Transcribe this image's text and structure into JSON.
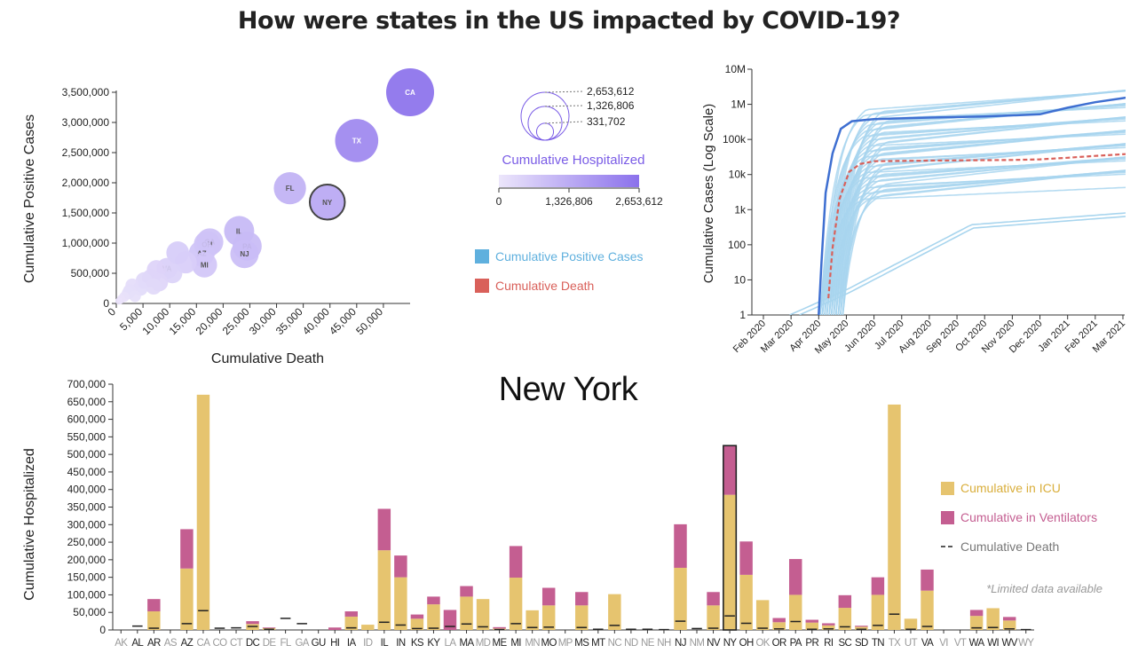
{
  "page": {
    "title": "How were states in the US impacted by COVID-19?",
    "selected_state": "New York"
  },
  "colors": {
    "scatter_low": "#ece6fb",
    "scatter_high": "#8b71ec",
    "selected_stroke": "#444444",
    "series_blue": "#5fb0de",
    "series_red": "#d9605a",
    "line_faint": "#a8d5ee",
    "line_highlight": "#3e6fd1",
    "line_death": "#d9605a",
    "icu": "#e6c46f",
    "ventilator": "#c45e91",
    "death_mark": "#222222",
    "title_purple": "#7a5ce6",
    "label_gray": "#8a8a8a"
  },
  "chart_data": [
    {
      "id": "scatter",
      "type": "scatter",
      "xlabel": "Cumulative Death",
      "ylabel": "Cumulative Positive Cases",
      "xlim": [
        0,
        55000
      ],
      "ylim": [
        0,
        3500000
      ],
      "xticks": [
        "0",
        "5,000",
        "10,000",
        "15,000",
        "20,000",
        "25,000",
        "30,000",
        "35,000",
        "40,000",
        "45,000",
        "50,000"
      ],
      "xtick_values": [
        0,
        5000,
        10000,
        15000,
        20000,
        25000,
        30000,
        35000,
        40000,
        45000,
        50000
      ],
      "yticks": [
        "0",
        "500,000",
        "1,000,000",
        "1,500,000",
        "2,000,000",
        "2,500,000",
        "3,000,000",
        "3,500,000"
      ],
      "ytick_values": [
        0,
        500000,
        1000000,
        1500000,
        2000000,
        2500000,
        3000000,
        3500000
      ],
      "points": [
        {
          "label": "CA",
          "x": 55000,
          "y": 3500000,
          "h": 2653612
        },
        {
          "label": "TX",
          "x": 45000,
          "y": 2700000,
          "h": 2150000
        },
        {
          "label": "FL",
          "x": 32500,
          "y": 1910000,
          "h": 1200000
        },
        {
          "label": "NY",
          "x": 39500,
          "y": 1680000,
          "h": 1420000,
          "selected": true
        },
        {
          "label": "IL",
          "x": 23000,
          "y": 1200000,
          "h": 1050000
        },
        {
          "label": "PA",
          "x": 24500,
          "y": 950000,
          "h": 980000
        },
        {
          "label": "NJ",
          "x": 24000,
          "y": 820000,
          "h": 930000
        },
        {
          "label": "GA",
          "x": 17500,
          "y": 1020000,
          "h": 850000
        },
        {
          "label": "OH",
          "x": 17000,
          "y": 980000,
          "h": 820000
        },
        {
          "label": "AZ",
          "x": 16000,
          "y": 830000,
          "h": 780000
        },
        {
          "label": "MI",
          "x": 16500,
          "y": 640000,
          "h": 740000
        },
        {
          "label": "VA",
          "x": 9500,
          "y": 580000,
          "h": 520000
        },
        {
          "label": "",
          "x": 11500,
          "y": 840000,
          "h": 600000
        },
        {
          "label": "",
          "x": 13000,
          "y": 680000,
          "h": 560000
        },
        {
          "label": "",
          "x": 10500,
          "y": 500000,
          "h": 460000
        },
        {
          "label": "",
          "x": 7500,
          "y": 560000,
          "h": 420000
        },
        {
          "label": "",
          "x": 6500,
          "y": 420000,
          "h": 380000
        },
        {
          "label": "",
          "x": 8000,
          "y": 350000,
          "h": 380000
        },
        {
          "label": "",
          "x": 5200,
          "y": 380000,
          "h": 320000
        },
        {
          "label": "",
          "x": 7000,
          "y": 280000,
          "h": 300000
        },
        {
          "label": "",
          "x": 4500,
          "y": 250000,
          "h": 260000
        },
        {
          "label": "",
          "x": 3000,
          "y": 300000,
          "h": 220000
        },
        {
          "label": "",
          "x": 2200,
          "y": 170000,
          "h": 180000
        },
        {
          "label": "",
          "x": 3500,
          "y": 120000,
          "h": 160000
        },
        {
          "label": "",
          "x": 1500,
          "y": 110000,
          "h": 120000
        },
        {
          "label": "",
          "x": 900,
          "y": 70000,
          "h": 90000
        },
        {
          "label": "",
          "x": 500,
          "y": 40000,
          "h": 60000
        },
        {
          "label": "",
          "x": 2500,
          "y": 210000,
          "h": 200000
        }
      ]
    },
    {
      "id": "hosp-legend",
      "type": "legend",
      "title": "Cumulative Hospitalized",
      "size_values": [
        "2,653,612",
        "1,326,806",
        "331,702"
      ],
      "size_numbers": [
        2653612,
        1326806,
        331702
      ],
      "gradient_ticks": [
        "0",
        "1,326,806",
        "2,653,612"
      ],
      "series_legend": [
        {
          "name": "Cumulative Positive Cases",
          "color": "#5fb0de"
        },
        {
          "name": "Cumulative Death",
          "color": "#d9605a"
        }
      ]
    },
    {
      "id": "timeline",
      "type": "line",
      "ylabel": "Cumulative Cases (Log Scale)",
      "yscale": "log",
      "ylim": [
        1,
        10000000
      ],
      "yticks": [
        "1",
        "10",
        "100",
        "1k",
        "10k",
        "100k",
        "1M",
        "10M"
      ],
      "xticks": [
        "Feb 2020",
        "Mar 2020",
        "Apr 2020",
        "May 2020",
        "Jun 2020",
        "Jul 2020",
        "Aug 2020",
        "Sep 2020",
        "Oct 2020",
        "Nov 2020",
        "Dec 2020",
        "Jan 2021",
        "Feb 2021",
        "Mar 2021"
      ],
      "highlight_cases": [
        [
          2.0,
          1
        ],
        [
          2.1,
          30
        ],
        [
          2.25,
          3000
        ],
        [
          2.5,
          40000
        ],
        [
          2.8,
          200000
        ],
        [
          3.2,
          330000
        ],
        [
          4,
          380000
        ],
        [
          6,
          420000
        ],
        [
          8,
          450000
        ],
        [
          10,
          520000
        ],
        [
          11,
          800000
        ],
        [
          12,
          1150000
        ],
        [
          13,
          1500000
        ],
        [
          13.4,
          1680000
        ]
      ],
      "highlight_deaths": [
        [
          2.35,
          3
        ],
        [
          2.5,
          80
        ],
        [
          2.75,
          2000
        ],
        [
          3.1,
          12000
        ],
        [
          3.5,
          20000
        ],
        [
          4,
          24000
        ],
        [
          6,
          25000
        ],
        [
          9,
          26000
        ],
        [
          10,
          27000
        ],
        [
          11,
          30000
        ],
        [
          12,
          34000
        ],
        [
          13.4,
          39500
        ]
      ]
    },
    {
      "id": "bars",
      "type": "bar",
      "ylabel": "Cumulative Hospitalized",
      "ylim": [
        0,
        700000
      ],
      "yticks": [
        "0",
        "50,000",
        "100,000",
        "150,000",
        "200,000",
        "250,000",
        "300,000",
        "350,000",
        "400,000",
        "450,000",
        "500,000",
        "550,000",
        "600,000",
        "650,000",
        "700,000"
      ],
      "categories": [
        "AK",
        "AL",
        "AR",
        "AS",
        "AZ",
        "CA",
        "CO",
        "CT",
        "DC",
        "DE",
        "FL",
        "GA",
        "GU",
        "HI",
        "IA",
        "ID",
        "IL",
        "IN",
        "KS",
        "KY",
        "LA",
        "MA",
        "MD",
        "ME",
        "MI",
        "MN",
        "MO",
        "MP",
        "MS",
        "MT",
        "NC",
        "ND",
        "NE",
        "NH",
        "NJ",
        "NM",
        "NV",
        "NY",
        "OH",
        "OK",
        "OR",
        "PA",
        "PR",
        "RI",
        "SC",
        "SD",
        "TN",
        "TX",
        "UT",
        "VA",
        "VI",
        "VT",
        "WA",
        "WI",
        "WV",
        "WY"
      ],
      "limited": [
        "AK",
        "AS",
        "CA",
        "CO",
        "CT",
        "DE",
        "FL",
        "GA",
        "ID",
        "LA",
        "MD",
        "MN",
        "MP",
        "NC",
        "ND",
        "NE",
        "NH",
        "NM",
        "OK",
        "TX",
        "UT",
        "VI",
        "VT",
        "WY"
      ],
      "icu": [
        0,
        0,
        53000,
        0,
        175000,
        670000,
        0,
        0,
        17000,
        5000,
        0,
        0,
        0,
        0,
        38000,
        15000,
        227000,
        150000,
        32000,
        73000,
        0,
        95000,
        88000,
        4000,
        149000,
        56000,
        70000,
        0,
        70000,
        0,
        102000,
        0,
        0,
        0,
        177000,
        0,
        70000,
        385000,
        157000,
        85000,
        22000,
        100000,
        21000,
        13000,
        63000,
        9000,
        100000,
        642000,
        32000,
        112000,
        0,
        0,
        40000,
        62000,
        27000,
        0
      ],
      "vent": [
        0,
        0,
        35000,
        0,
        112000,
        0,
        0,
        0,
        8000,
        2000,
        0,
        0,
        0,
        7000,
        15000,
        0,
        118000,
        62000,
        12000,
        22000,
        57000,
        30000,
        0,
        4000,
        90000,
        0,
        50000,
        0,
        38000,
        0,
        0,
        0,
        0,
        0,
        124000,
        0,
        38000,
        140000,
        95000,
        0,
        12000,
        102000,
        8000,
        6000,
        36000,
        3000,
        50000,
        0,
        0,
        60000,
        0,
        0,
        17000,
        0,
        10000,
        0
      ],
      "deaths": [
        0,
        11000,
        5000,
        0,
        18000,
        55000,
        5000,
        6000,
        10000,
        2000,
        33000,
        18000,
        0,
        0,
        6000,
        0,
        22000,
        14000,
        4000,
        5000,
        10000,
        17000,
        9000,
        1000,
        18000,
        7000,
        8000,
        0,
        7000,
        2000,
        13000,
        2000,
        2000,
        1000,
        25000,
        4000,
        5000,
        40000,
        19000,
        5000,
        3000,
        24000,
        2000,
        3000,
        9000,
        2000,
        13000,
        45000,
        2000,
        10000,
        0,
        0,
        6000,
        7000,
        3000,
        1000
      ],
      "selected": "NY",
      "legend": [
        "Cumulative in ICU",
        "Cumulative in Ventilators",
        "Cumulative Death"
      ],
      "note": "*Limited data available"
    }
  ]
}
